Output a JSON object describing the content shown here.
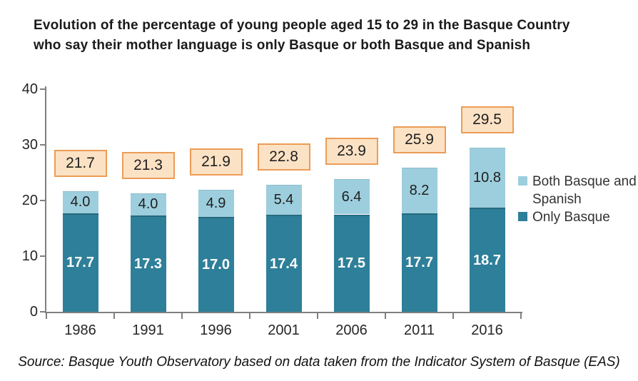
{
  "title": "Evolution of the percentage of young people aged 15 to 29 in the Basque Country\nwho say their mother language is only Basque or both Basque and Spanish",
  "source": "Source: Basque Youth Observatory based on data taken from the Indicator System of Basque (EAS)",
  "chart_data": {
    "type": "bar",
    "stacked": true,
    "title": "Evolution of the percentage of young people aged 15 to 29 in the Basque Country who say their mother language is only Basque or both Basque and Spanish",
    "categories": [
      "1986",
      "1991",
      "1996",
      "2001",
      "2006",
      "2011",
      "2016"
    ],
    "series": [
      {
        "name": "Only Basque",
        "color": "#2e7f99",
        "label_color": "#ffffff",
        "values": [
          17.7,
          17.3,
          17.0,
          17.4,
          17.5,
          17.7,
          18.7
        ]
      },
      {
        "name": "Both Basque and Spanish",
        "color": "#9dcedd",
        "label_color": "#1f1f1f",
        "values": [
          4.0,
          4.0,
          4.9,
          5.4,
          6.4,
          8.2,
          10.8
        ]
      }
    ],
    "totals": [
      21.7,
      21.3,
      21.9,
      22.8,
      23.9,
      25.9,
      29.5
    ],
    "total_box_style": {
      "fill": "#fce2c4",
      "border": "#ec9c56"
    },
    "ylim": [
      0,
      40
    ],
    "yticks": [
      0,
      10,
      20,
      30,
      40
    ],
    "grid": false,
    "legend_position": "right",
    "legend_order": [
      "Both Basque and Spanish",
      "Only Basque"
    ],
    "xlabel": "",
    "ylabel": ""
  }
}
